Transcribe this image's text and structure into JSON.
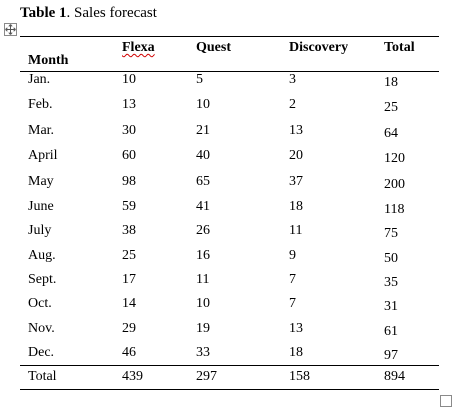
{
  "caption": {
    "label": "Table 1",
    "text": ". Sales forecast"
  },
  "headers": {
    "month": "Month",
    "flexa": "Flexa",
    "quest": "Quest",
    "discovery": "Discovery",
    "total": "Total"
  },
  "rows": [
    {
      "month": "Jan.",
      "flexa": "10",
      "quest": "5",
      "discovery": "3",
      "total": "18"
    },
    {
      "month": "Feb.",
      "flexa": "13",
      "quest": "10",
      "discovery": "2",
      "total": "25"
    },
    {
      "month": "Mar.",
      "flexa": "30",
      "quest": "21",
      "discovery": "13",
      "total": "64"
    },
    {
      "month": "April",
      "flexa": "60",
      "quest": "40",
      "discovery": "20",
      "total": "120"
    },
    {
      "month": "May",
      "flexa": "98",
      "quest": "65",
      "discovery": "37",
      "total": "200"
    },
    {
      "month": "June",
      "flexa": "59",
      "quest": "41",
      "discovery": "18",
      "total": "118"
    },
    {
      "month": "July",
      "flexa": "38",
      "quest": "26",
      "discovery": "11",
      "total": "75"
    },
    {
      "month": "Aug.",
      "flexa": "25",
      "quest": "16",
      "discovery": "9",
      "total": "50"
    },
    {
      "month": "Sept.",
      "flexa": "17",
      "quest": "11",
      "discovery": "7",
      "total": "35"
    },
    {
      "month": "Oct.",
      "flexa": "14",
      "quest": "10",
      "discovery": "7",
      "total": "31"
    },
    {
      "month": "Nov.",
      "flexa": "29",
      "quest": "19",
      "discovery": "13",
      "total": "61"
    },
    {
      "month": "Dec.",
      "flexa": "46",
      "quest": "33",
      "discovery": "18",
      "total": "97"
    }
  ],
  "totals": {
    "month": "Total",
    "flexa": "439",
    "quest": "297",
    "discovery": "158",
    "total": "894"
  }
}
